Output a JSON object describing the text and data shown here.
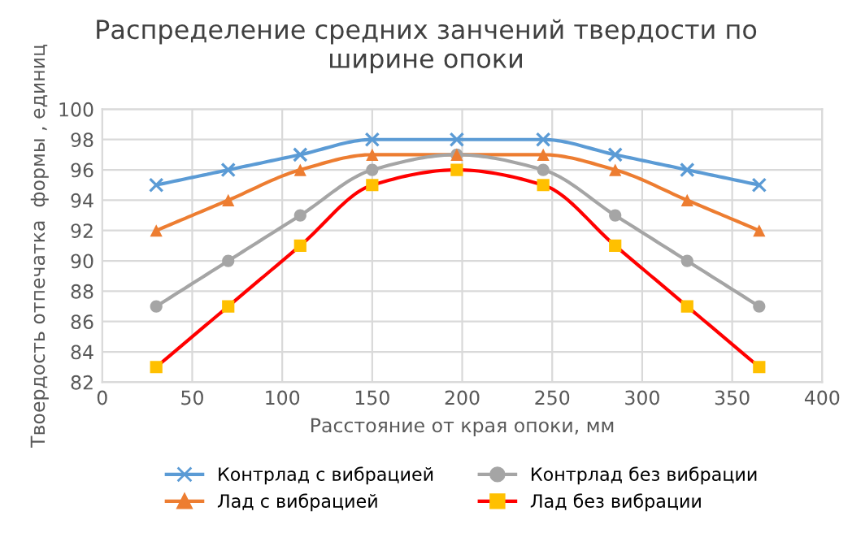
{
  "chart_data": {
    "type": "line",
    "title": "Распределение средних занчений твердости по ширине опоки",
    "xlabel": "Расстояние от края опоки, мм",
    "ylabel": "Твоердость отпечатка  формы , единиц",
    "x": [
      30,
      70,
      110,
      150,
      197,
      245,
      285,
      325,
      365
    ],
    "series": [
      {
        "name": "Контрлад с вибрацией",
        "color": "#5b9bd5",
        "marker": "cross",
        "values": [
          95,
          96,
          97,
          98,
          98,
          98,
          97,
          96,
          95
        ]
      },
      {
        "name": "Лад с вибрацией",
        "color": "#ed7d31",
        "marker": "triangle",
        "values": [
          92,
          94,
          96,
          97,
          97,
          97,
          96,
          94,
          92
        ]
      },
      {
        "name": "Контрлад без вибрации",
        "color": "#a5a5a5",
        "marker": "circle",
        "values": [
          87,
          90,
          93,
          96,
          97,
          96,
          93,
          90,
          87
        ]
      },
      {
        "name": "Лад без вибрации",
        "color": "#ff0000",
        "colors": [
          "#ffc000",
          "#ffc000",
          "#ffc000",
          "#ffc000",
          "#ffc000",
          "#ffc000",
          "#ffc000",
          "#ffc000",
          "#ffc000"
        ],
        "marker": "square",
        "values": [
          83,
          87,
          91,
          95,
          96,
          95,
          91,
          87,
          83
        ]
      }
    ],
    "xlim": [
      0,
      400
    ],
    "xticks": [
      0,
      50,
      100,
      150,
      200,
      250,
      300,
      350,
      400
    ],
    "ylim": [
      82,
      100
    ],
    "yticks": [
      82,
      84,
      86,
      88,
      90,
      92,
      94,
      96,
      98,
      100
    ],
    "grid": true,
    "legend": "bottom",
    "line_style": "solid"
  }
}
